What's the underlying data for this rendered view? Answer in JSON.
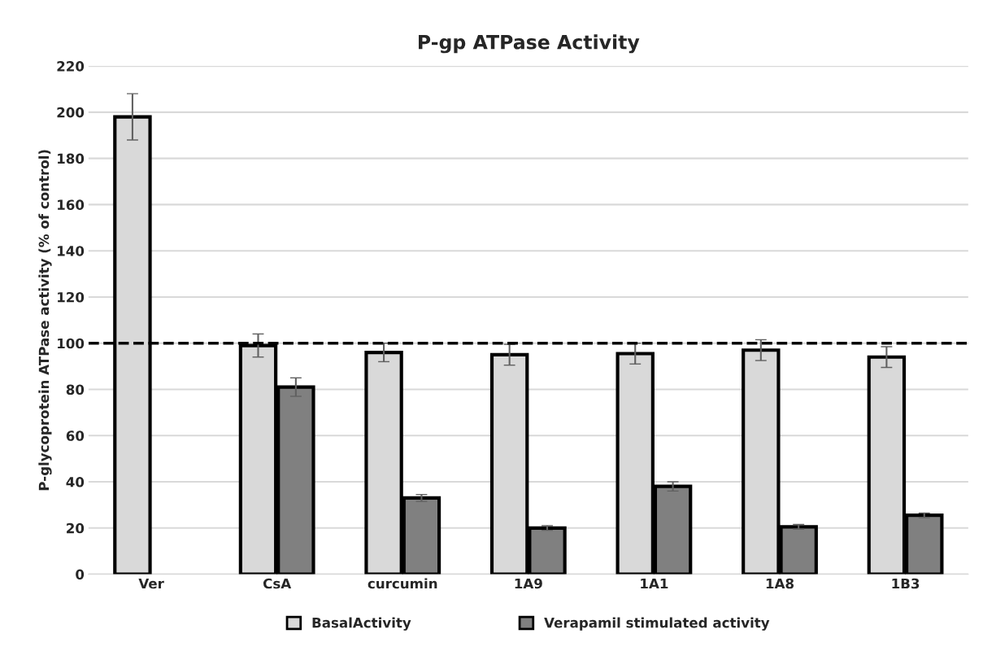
{
  "chart_data": {
    "type": "bar",
    "title": "P-gp ATPase Activity",
    "ylabel": "P-glycoprotein ATPase activity (% of control)",
    "categories": [
      "Ver",
      "CsA",
      "curcumin",
      "1A9",
      "1A1",
      "1A8",
      "1B3"
    ],
    "series": [
      {
        "name": "BasalActivity",
        "color": "#d9d9d9",
        "values": [
          198,
          99,
          96,
          95,
          95.5,
          97,
          94
        ],
        "errors": [
          10,
          5,
          4,
          4.5,
          4.5,
          4.5,
          4.5
        ]
      },
      {
        "name": "Verapamil stimulated activity",
        "color": "#808080",
        "values": [
          null,
          81,
          33,
          20,
          38,
          20.5,
          25.5
        ],
        "errors": [
          null,
          4,
          1.5,
          1,
          2,
          1,
          1
        ]
      }
    ],
    "ylim": [
      0,
      220
    ],
    "yticks": [
      0,
      20,
      40,
      60,
      80,
      100,
      120,
      140,
      160,
      180,
      200,
      220
    ],
    "ref_lines": [
      {
        "axis": "y",
        "value": 100,
        "color": "#000000",
        "line_style": "dashed"
      }
    ],
    "grid": "y",
    "legend": "bottom"
  }
}
